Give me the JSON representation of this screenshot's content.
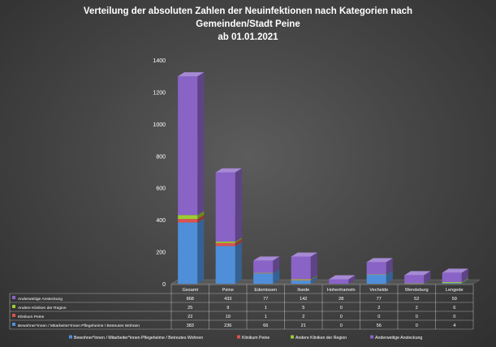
{
  "chart_data": {
    "type": "bar",
    "stacked": true,
    "three_d": true,
    "title_lines": [
      "Verteilung der absoluten Zahlen der Neuinfektionen nach Kategorien nach",
      "Gemeinden/Stadt Peine",
      "ab 01.01.2021"
    ],
    "categories": [
      "Gesamt",
      "Peine",
      "Edemissen",
      "Ilsede",
      "Hohenhameln",
      "Vechelde",
      "Wendeburg",
      "Lengede"
    ],
    "series": [
      {
        "name": "Bewohner*innen / Mitarbeiter*innen Pflegeheime / Betreutes Wohnen",
        "color": "#4f8fd9",
        "values": [
          383,
          236,
          66,
          21,
          0,
          56,
          0,
          4
        ]
      },
      {
        "name": "Klinikum Peine",
        "color": "#d9534f",
        "values": [
          22,
          19,
          1,
          2,
          0,
          0,
          0,
          0
        ]
      },
      {
        "name": "Andere Kliniken der Region",
        "color": "#9acd32",
        "values": [
          25,
          9,
          1,
          5,
          0,
          2,
          2,
          6
        ]
      },
      {
        "name": "Anderweitige Ansteckung",
        "color": "#8a63c7",
        "values": [
          868,
          433,
          77,
          142,
          28,
          77,
          52,
          59
        ]
      }
    ],
    "y_ticks": [
      0,
      200,
      400,
      600,
      800,
      1000,
      1200,
      1400
    ],
    "ylim": [
      0,
      1400
    ],
    "grid": false,
    "legend_position": "bottom",
    "data_table": true
  }
}
